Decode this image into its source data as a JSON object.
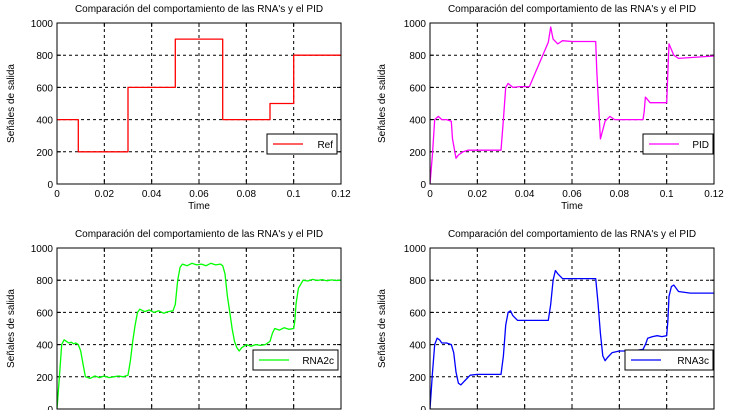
{
  "chart_data": [
    {
      "type": "line",
      "title": "Comparación del comportamiento de las RNA's y el PID",
      "xlabel": "Time",
      "ylabel": "Señales de salida",
      "xlim": [
        0,
        0.12
      ],
      "ylim": [
        0,
        1000
      ],
      "xticks": [
        "0",
        "0.02",
        "0.04",
        "0.06",
        "0.08",
        "0.1",
        "0.12"
      ],
      "yticks": [
        "0",
        "200",
        "400",
        "600",
        "800",
        "1000"
      ],
      "grid": true,
      "legend_position": "lower-right",
      "series": [
        {
          "name": "Ref",
          "color": "#ff0000",
          "x": [
            0,
            0.009,
            0.009,
            0.03,
            0.03,
            0.05,
            0.05,
            0.07,
            0.07,
            0.09,
            0.09,
            0.1,
            0.1,
            0.12
          ],
          "y": [
            400,
            400,
            200,
            200,
            600,
            600,
            900,
            900,
            400,
            400,
            500,
            500,
            800,
            800
          ]
        }
      ]
    },
    {
      "type": "line",
      "title": "Comparación del comportamiento de las RNA's y el PID",
      "xlabel": "Time",
      "ylabel": "Señales de salida",
      "xlim": [
        0,
        0.12
      ],
      "ylim": [
        0,
        1000
      ],
      "xticks": [
        "0",
        "0.02",
        "0.04",
        "0.06",
        "0.08",
        "0.1",
        "0.12"
      ],
      "yticks": [
        "0",
        "200",
        "400",
        "600",
        "800",
        "1000"
      ],
      "grid": true,
      "legend_position": "right",
      "series": [
        {
          "name": "PID",
          "color": "#ff00ff",
          "x": [
            0,
            0.001,
            0.002,
            0.0035,
            0.005,
            0.007,
            0.009,
            0.0095,
            0.011,
            0.012,
            0.014,
            0.016,
            0.02,
            0.03,
            0.031,
            0.032,
            0.033,
            0.035,
            0.038,
            0.042,
            0.05,
            0.051,
            0.052,
            0.054,
            0.056,
            0.06,
            0.07,
            0.0705,
            0.072,
            0.074,
            0.076,
            0.078,
            0.085,
            0.09,
            0.0905,
            0.091,
            0.093,
            0.095,
            0.1,
            0.1005,
            0.101,
            0.103,
            0.105,
            0.12
          ],
          "y": [
            0,
            180,
            400,
            420,
            400,
            400,
            390,
            280,
            160,
            180,
            200,
            210,
            210,
            210,
            400,
            600,
            625,
            600,
            605,
            605,
            880,
            975,
            900,
            870,
            890,
            885,
            885,
            700,
            280,
            390,
            420,
            400,
            400,
            400,
            450,
            540,
            505,
            505,
            505,
            700,
            870,
            800,
            780,
            795
          ]
        }
      ]
    },
    {
      "type": "line",
      "title": "Comparación del comportamiento de las RNA's y el PID",
      "xlabel": "",
      "ylabel": "Señales de salida",
      "xlim": [
        0,
        0.12
      ],
      "ylim": [
        0,
        1000
      ],
      "yticks": [
        "0",
        "200",
        "400",
        "600",
        "800",
        "1000"
      ],
      "grid": true,
      "legend_position": "right",
      "series": [
        {
          "name": "RNA2c",
          "color": "#00ff00",
          "x": [
            0,
            0.001,
            0.002,
            0.003,
            0.004,
            0.005,
            0.006,
            0.007,
            0.008,
            0.009,
            0.01,
            0.011,
            0.012,
            0.014,
            0.016,
            0.018,
            0.02,
            0.022,
            0.024,
            0.026,
            0.028,
            0.03,
            0.031,
            0.032,
            0.033,
            0.034,
            0.035,
            0.037,
            0.039,
            0.041,
            0.043,
            0.045,
            0.047,
            0.049,
            0.05,
            0.051,
            0.052,
            0.053,
            0.055,
            0.057,
            0.059,
            0.061,
            0.063,
            0.065,
            0.067,
            0.069,
            0.07,
            0.071,
            0.072,
            0.073,
            0.074,
            0.075,
            0.076,
            0.077,
            0.078,
            0.08,
            0.082,
            0.084,
            0.086,
            0.088,
            0.09,
            0.091,
            0.092,
            0.094,
            0.096,
            0.098,
            0.1,
            0.1005,
            0.101,
            0.102,
            0.104,
            0.106,
            0.108,
            0.11,
            0.112,
            0.114,
            0.116,
            0.118,
            0.12
          ],
          "y": [
            0,
            200,
            400,
            430,
            420,
            410,
            415,
            405,
            410,
            400,
            360,
            280,
            200,
            190,
            205,
            195,
            205,
            195,
            200,
            205,
            200,
            210,
            300,
            420,
            520,
            600,
            620,
            605,
            615,
            600,
            610,
            595,
            605,
            610,
            650,
            800,
            880,
            900,
            890,
            905,
            895,
            900,
            890,
            905,
            895,
            900,
            890,
            840,
            700,
            600,
            500,
            420,
            380,
            360,
            380,
            400,
            390,
            400,
            395,
            400,
            420,
            470,
            500,
            490,
            505,
            495,
            500,
            550,
            650,
            750,
            800,
            795,
            805,
            798,
            804,
            796,
            802,
            798,
            800
          ]
        }
      ]
    },
    {
      "type": "line",
      "title": "Comparación del comportamiento de las RNA's y el PID",
      "xlabel": "",
      "ylabel": "Señales de salida",
      "xlim": [
        0,
        0.12
      ],
      "ylim": [
        0,
        1000
      ],
      "yticks": [
        "0",
        "200",
        "400",
        "600",
        "800",
        "1000"
      ],
      "grid": true,
      "legend_position": "right",
      "series": [
        {
          "name": "RNA3c",
          "color": "#0000ff",
          "x": [
            0,
            0.001,
            0.002,
            0.003,
            0.004,
            0.005,
            0.007,
            0.009,
            0.01,
            0.011,
            0.012,
            0.013,
            0.015,
            0.017,
            0.02,
            0.025,
            0.03,
            0.031,
            0.032,
            0.033,
            0.034,
            0.035,
            0.037,
            0.04,
            0.045,
            0.05,
            0.051,
            0.052,
            0.053,
            0.054,
            0.056,
            0.06,
            0.065,
            0.07,
            0.071,
            0.072,
            0.073,
            0.074,
            0.075,
            0.077,
            0.08,
            0.085,
            0.09,
            0.091,
            0.092,
            0.094,
            0.096,
            0.098,
            0.1,
            0.1005,
            0.101,
            0.102,
            0.103,
            0.105,
            0.11,
            0.12
          ],
          "y": [
            0,
            220,
            400,
            440,
            430,
            410,
            410,
            400,
            350,
            230,
            160,
            150,
            180,
            210,
            215,
            215,
            215,
            330,
            520,
            600,
            610,
            580,
            550,
            550,
            550,
            550,
            650,
            800,
            860,
            840,
            810,
            810,
            810,
            810,
            660,
            470,
            330,
            300,
            320,
            350,
            360,
            360,
            370,
            400,
            440,
            450,
            455,
            450,
            455,
            550,
            700,
            760,
            770,
            730,
            720,
            720
          ]
        }
      ]
    }
  ]
}
